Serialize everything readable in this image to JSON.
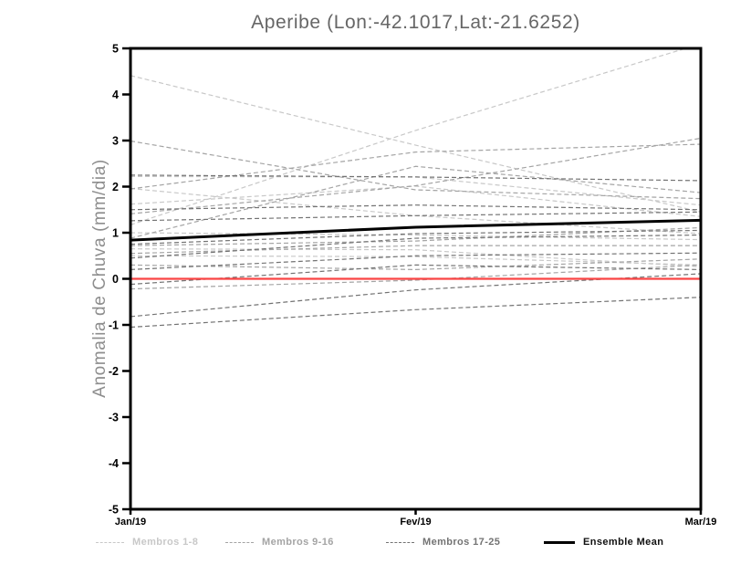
{
  "title": "Aperibe (Lon:-42.1017,Lat:-21.6252)",
  "colors": {
    "members_1_8": "#c8c8c8",
    "members_9_16": "#a4a4a4",
    "members_17_25": "#737373",
    "ensemble_mean": "#000000",
    "zero_line": "#f94444",
    "axis": "#000000",
    "title_text": "#666666",
    "ylabel_text": "#8e8e8e"
  },
  "chart_data": {
    "type": "line",
    "title": "Aperibe (Lon:-42.1017,Lat:-21.6252)",
    "xlabel": "",
    "ylabel": "Anomalia de Chuva (mm/dia)",
    "categories": [
      "Jan/19",
      "Fev/19",
      "Mar/19"
    ],
    "ylim": [
      -5,
      5
    ],
    "ytick_step": 1,
    "grid": false,
    "legend_position": "bottom",
    "zero_line": {
      "value": 0,
      "color": "#f94444"
    },
    "groups": [
      {
        "name": "Membros 1-8",
        "color": "#c8c8c8",
        "style": "dashed",
        "series": [
          [
            4.41,
            2.9,
            1.45
          ],
          [
            1.17,
            3.22,
            5.1
          ],
          [
            2.22,
            2.21,
            1.6
          ],
          [
            1.96,
            1.37,
            0.98
          ],
          [
            1.62,
            2.01,
            1.35
          ],
          [
            1.0,
            0.95,
            0.85
          ],
          [
            0.65,
            0.63,
            0.26
          ],
          [
            0.5,
            0.48,
            0.3
          ]
        ]
      },
      {
        "name": "Membros 9-16",
        "color": "#a4a4a4",
        "style": "dashed",
        "series": [
          [
            2.99,
            1.93,
            1.74
          ],
          [
            0.88,
            2.44,
            1.87
          ],
          [
            1.95,
            2.75,
            2.92
          ],
          [
            1.41,
            2.02,
            3.05
          ],
          [
            0.72,
            0.82,
            1.11
          ],
          [
            0.55,
            0.72,
            0.72
          ],
          [
            0.3,
            0.2,
            0.43
          ],
          [
            -0.22,
            -0.03,
            0.3
          ]
        ]
      },
      {
        "name": "Membros 17-25",
        "color": "#737373",
        "style": "dashed",
        "series": [
          [
            2.25,
            2.21,
            2.13
          ],
          [
            1.5,
            1.6,
            1.5
          ],
          [
            1.26,
            1.37,
            1.45
          ],
          [
            0.75,
            0.98,
            1.05
          ],
          [
            0.45,
            0.88,
            0.95
          ],
          [
            0.2,
            0.5,
            0.56
          ],
          [
            -0.12,
            0.3,
            0.2
          ],
          [
            -0.82,
            -0.24,
            0.11
          ],
          [
            -1.05,
            -0.67,
            -0.4
          ]
        ]
      }
    ],
    "mean": {
      "name": "Ensemble Mean",
      "color": "#000000",
      "values": [
        0.84,
        1.12,
        1.27
      ]
    }
  }
}
